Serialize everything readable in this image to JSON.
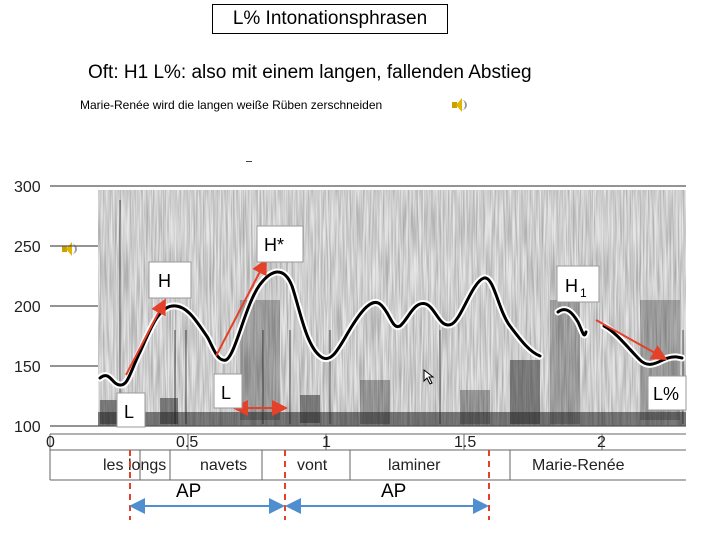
{
  "header": {
    "title": "L% Intonationsphrasen",
    "subtitle": "Oft: H1 L%: also mit einem langen, fallenden Abstieg",
    "sentence": "Marie-Renée wird die langen weiße Rüben zerschneiden"
  },
  "icons": {
    "speaker": "speaker-icon"
  },
  "chart_data": {
    "type": "line",
    "y_tick_labels": [
      "300",
      "250",
      "200",
      "150",
      "100"
    ],
    "x_tick_labels": [
      "0",
      "0.5",
      "1",
      "1.5",
      "2"
    ],
    "words": [
      "les",
      "longs",
      "navets",
      "vont",
      "laminer",
      "Marie-Renée"
    ],
    "tone_labels": {
      "L1": "L",
      "H": "H",
      "L2": "L",
      "Hstar": "H*",
      "H1_base": "H",
      "H1_sub": "1",
      "Lpct": "L%"
    },
    "phrase_labels": [
      "AP",
      "AP"
    ],
    "colors": {
      "arrow": "#e5402a",
      "bracket": "#4f8fd0",
      "dashed": "#e5402a",
      "contour": "#000000"
    }
  }
}
